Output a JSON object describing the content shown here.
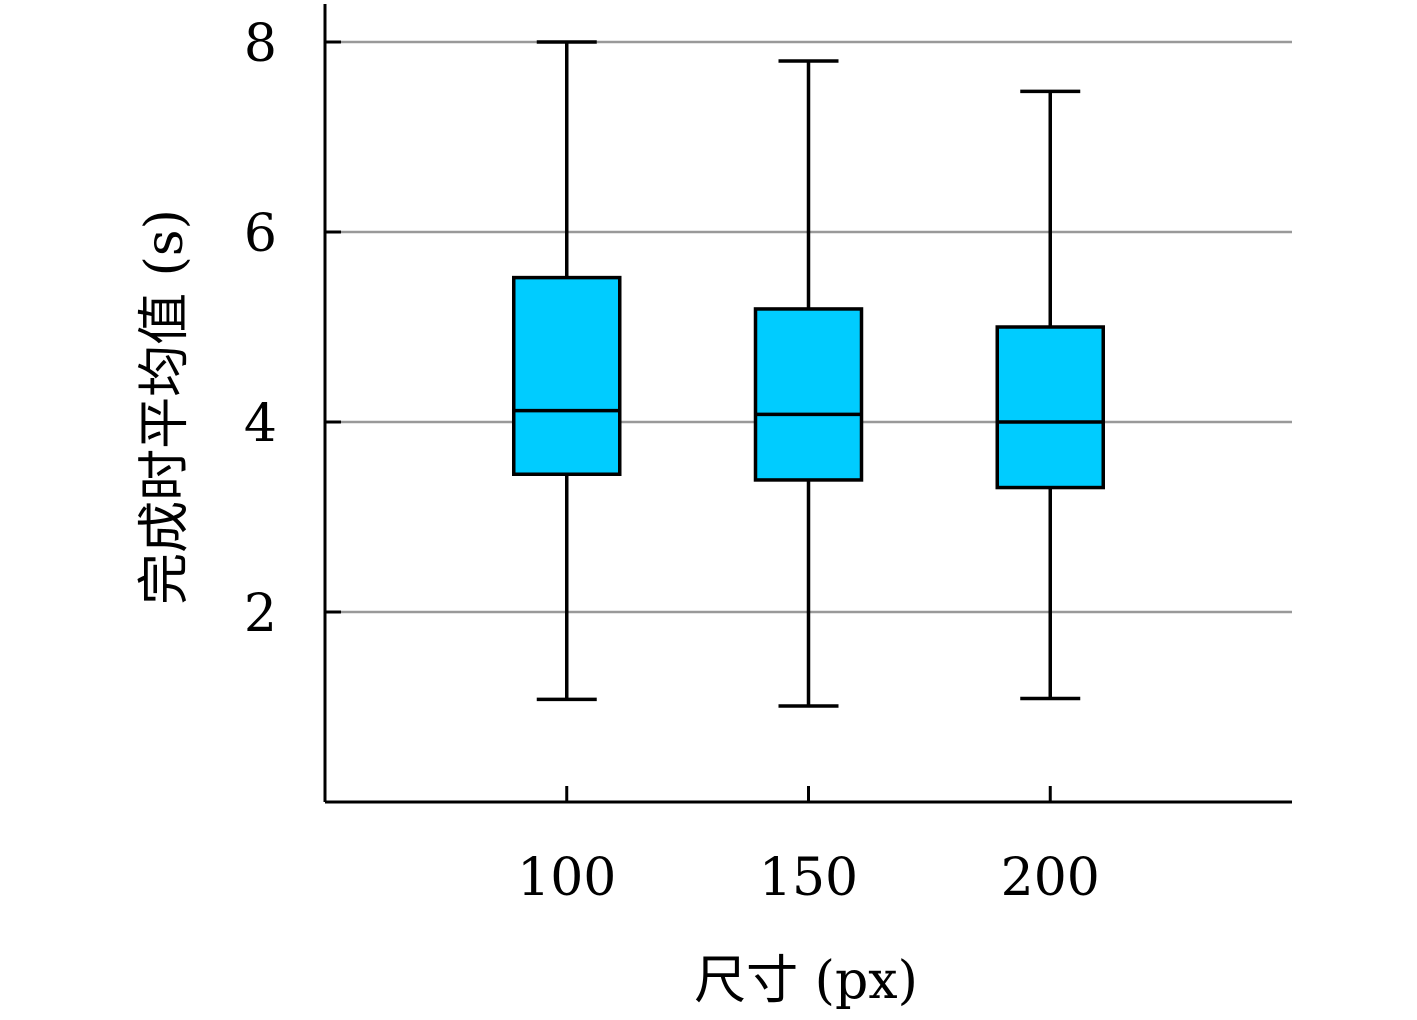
{
  "chart_data": {
    "type": "box",
    "xlabel": "尺寸 (px)",
    "ylabel": "完成时平均值 (s)",
    "categories": [
      "100",
      "150",
      "200"
    ],
    "boxes": [
      {
        "category": "100",
        "whisker_low": 1.08,
        "q1": 3.45,
        "median": 4.12,
        "q3": 5.52,
        "whisker_high": 8.0
      },
      {
        "category": "150",
        "whisker_low": 1.01,
        "q1": 3.39,
        "median": 4.08,
        "q3": 5.19,
        "whisker_high": 7.8
      },
      {
        "category": "200",
        "whisker_low": 1.09,
        "q1": 3.31,
        "median": 4.0,
        "q3": 5.0,
        "whisker_high": 7.48
      }
    ],
    "yticks": [
      2,
      4,
      6,
      8
    ],
    "ylim": [
      0,
      8.4
    ],
    "xlim": [
      0,
      4
    ],
    "x_positions": [
      1,
      2,
      3
    ],
    "grid": true,
    "colors": {
      "box_fill": "#00ccff",
      "box_edge": "#000000",
      "grid": "#999999",
      "axis": "#000000"
    }
  }
}
